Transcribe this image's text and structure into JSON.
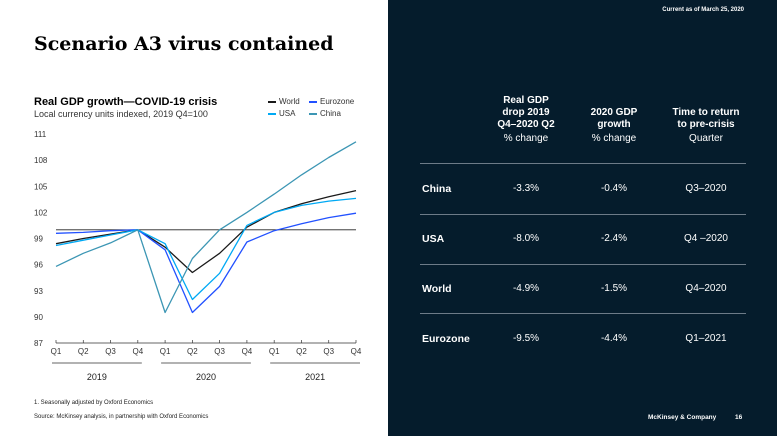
{
  "slide": {
    "title": "Scenario A3 virus contained",
    "as_of": "Current as of March 25, 2020",
    "footnote": "1.   Seasonally adjusted by Oxford Economics",
    "source": "Source: McKinsey analysis, in partnership with Oxford Economics",
    "brand": "McKinsey & Company",
    "page": "16"
  },
  "chart_data": {
    "type": "line",
    "title": "Real GDP growth—COVID-19 crisis",
    "subtitle": "Local currency units indexed, 2019 Q4=100",
    "categories": [
      "Q1",
      "Q2",
      "Q3",
      "Q4",
      "Q1",
      "Q2",
      "Q3",
      "Q4",
      "Q1",
      "Q2",
      "Q3",
      "Q4"
    ],
    "year_groups": [
      {
        "label": "2019",
        "from": 0,
        "to": 3
      },
      {
        "label": "2020",
        "from": 4,
        "to": 7
      },
      {
        "label": "2021",
        "from": 8,
        "to": 11
      }
    ],
    "yticks": [
      87,
      90,
      93,
      96,
      99,
      102,
      105,
      108,
      111
    ],
    "ylim": [
      87,
      111
    ],
    "reference_line": 100,
    "grid": false,
    "legend_position": "top-right",
    "series": [
      {
        "name": "World",
        "color": "#1a1a1a",
        "values": [
          98.4,
          99.0,
          99.5,
          100.0,
          98.0,
          95.1,
          97.3,
          100.3,
          102.0,
          103.0,
          103.8,
          104.5
        ]
      },
      {
        "name": "Eurozone",
        "color": "#2251ff",
        "values": [
          99.6,
          99.7,
          99.9,
          100.0,
          97.7,
          90.5,
          93.5,
          98.6,
          99.9,
          100.7,
          101.4,
          101.9
        ]
      },
      {
        "name": "USA",
        "color": "#00a9f4",
        "values": [
          98.2,
          98.8,
          99.4,
          100.0,
          98.4,
          92.0,
          95.0,
          100.5,
          102.0,
          102.8,
          103.3,
          103.6
        ]
      },
      {
        "name": "China",
        "color": "#3c96b4",
        "values": [
          95.8,
          97.3,
          98.5,
          100.0,
          90.5,
          96.7,
          100.0,
          102.0,
          104.1,
          106.3,
          108.3,
          110.1
        ]
      }
    ]
  },
  "table": {
    "headers": [
      {
        "lines": [
          "Real GDP",
          "drop 2019",
          "Q4–2020 Q2"
        ],
        "unit": "% change"
      },
      {
        "lines": [
          "2020 GDP",
          "growth"
        ],
        "unit": "% change"
      },
      {
        "lines": [
          "Time to return",
          "to pre-crisis"
        ],
        "unit": "Quarter"
      }
    ],
    "rows": [
      {
        "label": "China",
        "drop": "-3.3%",
        "growth": "-0.4%",
        "return": "Q3–2020"
      },
      {
        "label": "USA",
        "drop": "-8.0%",
        "growth": "-2.4%",
        "return": "Q4 –2020"
      },
      {
        "label": "World",
        "drop": "-4.9%",
        "growth": "-1.5%",
        "return": "Q4–2020"
      },
      {
        "label": "Eurozone",
        "drop": "-9.5%",
        "growth": "-4.4%",
        "return": "Q1–2021"
      }
    ]
  }
}
